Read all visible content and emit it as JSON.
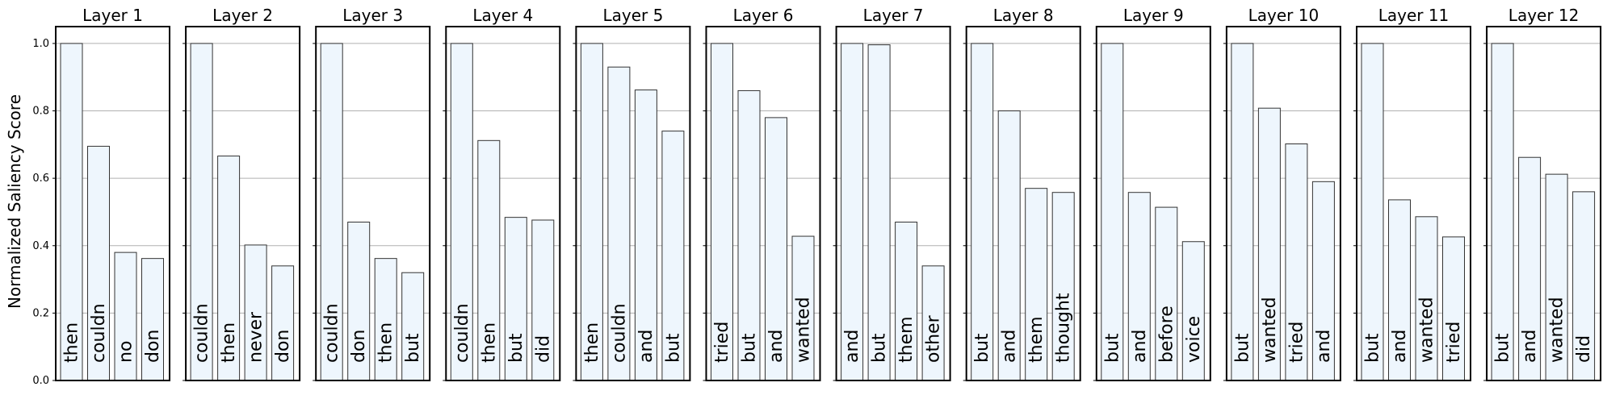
{
  "chart_data": {
    "type": "bar",
    "ylabel": "Normalized Saliency Score",
    "ylim": [
      0,
      1.05
    ],
    "yticks": [
      0.0,
      0.2,
      0.4,
      0.6,
      0.8,
      1.0
    ],
    "ytick_labels": [
      "0.0",
      "0.2",
      "0.4",
      "0.6",
      "0.8",
      "1.0"
    ],
    "grid": true,
    "bar_color": "#eef6fd",
    "edge_color": "#333333",
    "grid_color": "#b0b0b0",
    "panels": [
      {
        "title": "Layer 1",
        "categories": [
          "then",
          "couldn",
          "no",
          "don"
        ],
        "values": [
          1.0,
          0.695,
          0.38,
          0.362
        ]
      },
      {
        "title": "Layer 2",
        "categories": [
          "couldn",
          "then",
          "never",
          "don"
        ],
        "values": [
          1.0,
          0.666,
          0.402,
          0.34
        ]
      },
      {
        "title": "Layer 3",
        "categories": [
          "couldn",
          "don",
          "then",
          "but"
        ],
        "values": [
          1.0,
          0.47,
          0.362,
          0.32
        ]
      },
      {
        "title": "Layer 4",
        "categories": [
          "couldn",
          "then",
          "but",
          "did"
        ],
        "values": [
          1.0,
          0.712,
          0.484,
          0.476
        ]
      },
      {
        "title": "Layer 5",
        "categories": [
          "then",
          "couldn",
          "and",
          "but"
        ],
        "values": [
          1.0,
          0.93,
          0.862,
          0.74
        ]
      },
      {
        "title": "Layer 6",
        "categories": [
          "tried",
          "but",
          "and",
          "wanted"
        ],
        "values": [
          1.0,
          0.86,
          0.78,
          0.428
        ]
      },
      {
        "title": "Layer 7",
        "categories": [
          "and",
          "but",
          "them",
          "other"
        ],
        "values": [
          1.0,
          0.996,
          0.47,
          0.34
        ]
      },
      {
        "title": "Layer 8",
        "categories": [
          "but",
          "and",
          "them",
          "thought"
        ],
        "values": [
          1.0,
          0.8,
          0.57,
          0.558
        ]
      },
      {
        "title": "Layer 9",
        "categories": [
          "but",
          "and",
          "before",
          "voice"
        ],
        "values": [
          1.0,
          0.558,
          0.514,
          0.412
        ]
      },
      {
        "title": "Layer 10",
        "categories": [
          "but",
          "wanted",
          "tried",
          "and"
        ],
        "values": [
          1.0,
          0.808,
          0.702,
          0.59
        ]
      },
      {
        "title": "Layer 11",
        "categories": [
          "but",
          "and",
          "wanted",
          "tried"
        ],
        "values": [
          1.0,
          0.536,
          0.486,
          0.426
        ]
      },
      {
        "title": "Layer 12",
        "categories": [
          "but",
          "and",
          "wanted",
          "did"
        ],
        "values": [
          1.0,
          0.662,
          0.612,
          0.56
        ]
      }
    ]
  }
}
